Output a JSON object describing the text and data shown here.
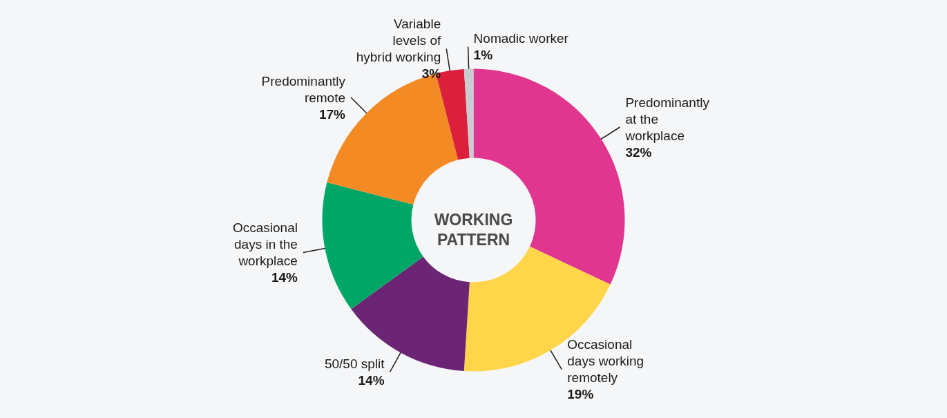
{
  "chart_data": {
    "type": "donut",
    "title": "WORKING PATTERN",
    "categories": [
      "Predominantly at the workplace",
      "Occasional days working remotely",
      "50/50 split",
      "Occasional days in the workplace",
      "Predominantly remote",
      "Variable levels of hybrid working",
      "Nomadic worker"
    ],
    "values": [
      32,
      19,
      14,
      14,
      17,
      3,
      1
    ],
    "value_labels": [
      "32%",
      "19%",
      "14%",
      "14%",
      "17%",
      "3%",
      "1%"
    ],
    "colors": [
      "#e0368f",
      "#ffd54a",
      "#6b2574",
      "#00a665",
      "#f38a24",
      "#dc1f3a",
      "#c9cdd1"
    ]
  }
}
